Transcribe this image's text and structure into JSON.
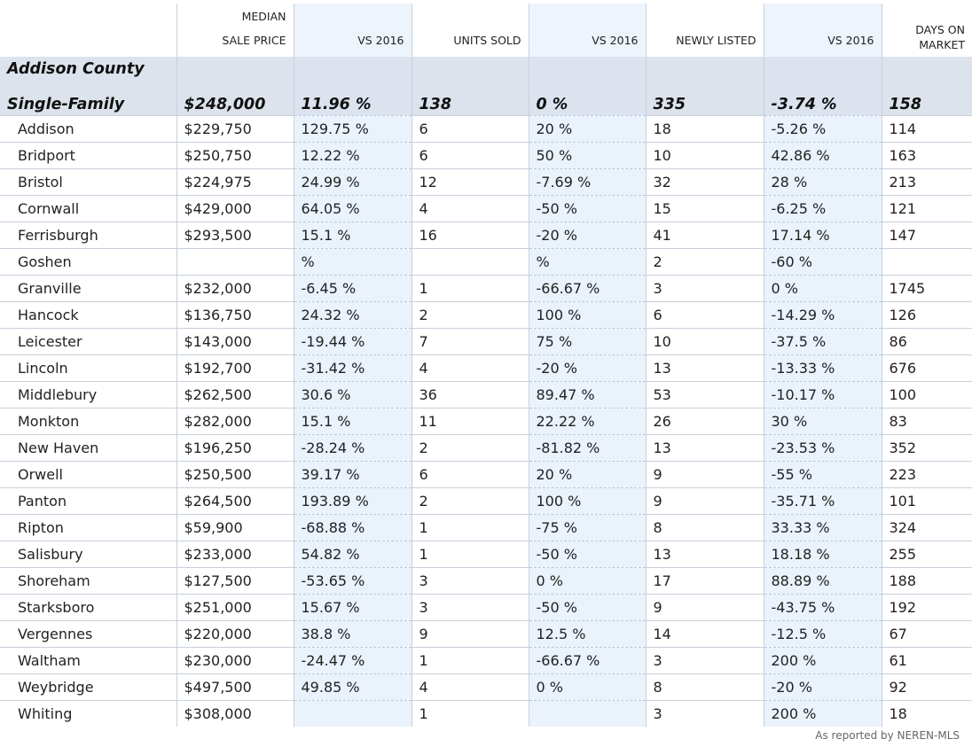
{
  "headers": {
    "median_line1": "MEDIAN",
    "median_line2": "SALE PRICE",
    "vs_price": "VS 2016",
    "units_sold": "UNITS SOLD",
    "vs_units": "VS 2016",
    "newly_listed": "NEWLY LISTED",
    "vs_listed": "VS 2016",
    "days_line1": "DAYS ON",
    "days_line2": "MARKET"
  },
  "county": {
    "name": "Addison County",
    "type": "Single-Family",
    "median": "$248,000",
    "vs_price": "11.96 %",
    "units": "138",
    "vs_units": "0 %",
    "listed": "335",
    "vs_listed": "-3.74 %",
    "days": "158"
  },
  "rows": [
    {
      "town": "Addison",
      "median": "$229,750",
      "vs_price": "129.75 %",
      "units": "6",
      "vs_units": "20 %",
      "listed": "18",
      "vs_listed": "-5.26 %",
      "days": "114"
    },
    {
      "town": "Bridport",
      "median": "$250,750",
      "vs_price": "12.22 %",
      "units": "6",
      "vs_units": "50 %",
      "listed": "10",
      "vs_listed": "42.86 %",
      "days": "163"
    },
    {
      "town": "Bristol",
      "median": "$224,975",
      "vs_price": "24.99 %",
      "units": "12",
      "vs_units": "-7.69 %",
      "listed": "32",
      "vs_listed": "28 %",
      "days": "213"
    },
    {
      "town": "Cornwall",
      "median": "$429,000",
      "vs_price": "64.05 %",
      "units": "4",
      "vs_units": "-50 %",
      "listed": "15",
      "vs_listed": "-6.25 %",
      "days": "121"
    },
    {
      "town": "Ferrisburgh",
      "median": "$293,500",
      "vs_price": "15.1 %",
      "units": "16",
      "vs_units": "-20 %",
      "listed": "41",
      "vs_listed": "17.14 %",
      "days": "147"
    },
    {
      "town": "Goshen",
      "median": "",
      "vs_price": "%",
      "units": "",
      "vs_units": "%",
      "listed": "2",
      "vs_listed": "-60 %",
      "days": ""
    },
    {
      "town": "Granville",
      "median": "$232,000",
      "vs_price": "-6.45 %",
      "units": "1",
      "vs_units": "-66.67 %",
      "listed": "3",
      "vs_listed": "0 %",
      "days": "1745"
    },
    {
      "town": "Hancock",
      "median": "$136,750",
      "vs_price": "24.32 %",
      "units": "2",
      "vs_units": "100 %",
      "listed": "6",
      "vs_listed": "-14.29 %",
      "days": "126"
    },
    {
      "town": "Leicester",
      "median": "$143,000",
      "vs_price": "-19.44 %",
      "units": "7",
      "vs_units": "75 %",
      "listed": "10",
      "vs_listed": "-37.5 %",
      "days": "86"
    },
    {
      "town": "Lincoln",
      "median": "$192,700",
      "vs_price": "-31.42 %",
      "units": "4",
      "vs_units": "-20 %",
      "listed": "13",
      "vs_listed": "-13.33 %",
      "days": "676"
    },
    {
      "town": "Middlebury",
      "median": "$262,500",
      "vs_price": "30.6 %",
      "units": "36",
      "vs_units": "89.47 %",
      "listed": "53",
      "vs_listed": "-10.17 %",
      "days": "100"
    },
    {
      "town": "Monkton",
      "median": "$282,000",
      "vs_price": "15.1 %",
      "units": "11",
      "vs_units": "22.22 %",
      "listed": "26",
      "vs_listed": "30 %",
      "days": "83"
    },
    {
      "town": "New Haven",
      "median": "$196,250",
      "vs_price": "-28.24 %",
      "units": "2",
      "vs_units": "-81.82 %",
      "listed": "13",
      "vs_listed": "-23.53 %",
      "days": "352"
    },
    {
      "town": "Orwell",
      "median": "$250,500",
      "vs_price": "39.17 %",
      "units": "6",
      "vs_units": "20 %",
      "listed": "9",
      "vs_listed": "-55 %",
      "days": "223"
    },
    {
      "town": "Panton",
      "median": "$264,500",
      "vs_price": "193.89 %",
      "units": "2",
      "vs_units": "100 %",
      "listed": "9",
      "vs_listed": "-35.71 %",
      "days": "101"
    },
    {
      "town": "Ripton",
      "median": "$59,900",
      "vs_price": "-68.88 %",
      "units": "1",
      "vs_units": "-75 %",
      "listed": "8",
      "vs_listed": "33.33 %",
      "days": "324"
    },
    {
      "town": "Salisbury",
      "median": "$233,000",
      "vs_price": "54.82 %",
      "units": "1",
      "vs_units": "-50 %",
      "listed": "13",
      "vs_listed": "18.18 %",
      "days": "255"
    },
    {
      "town": "Shoreham",
      "median": "$127,500",
      "vs_price": "-53.65 %",
      "units": "3",
      "vs_units": "0 %",
      "listed": "17",
      "vs_listed": "88.89 %",
      "days": "188"
    },
    {
      "town": "Starksboro",
      "median": "$251,000",
      "vs_price": "15.67 %",
      "units": "3",
      "vs_units": "-50 %",
      "listed": "9",
      "vs_listed": "-43.75 %",
      "days": "192"
    },
    {
      "town": "Vergennes",
      "median": "$220,000",
      "vs_price": "38.8 %",
      "units": "9",
      "vs_units": "12.5 %",
      "listed": "14",
      "vs_listed": "-12.5 %",
      "days": "67"
    },
    {
      "town": "Waltham",
      "median": "$230,000",
      "vs_price": "-24.47 %",
      "units": "1",
      "vs_units": "-66.67 %",
      "listed": "3",
      "vs_listed": "200 %",
      "days": "61"
    },
    {
      "town": "Weybridge",
      "median": "$497,500",
      "vs_price": "49.85 %",
      "units": "4",
      "vs_units": "0 %",
      "listed": "8",
      "vs_listed": "-20 %",
      "days": "92"
    },
    {
      "town": "Whiting",
      "median": "$308,000",
      "vs_price": "",
      "units": "1",
      "vs_units": "",
      "listed": "3",
      "vs_listed": "200 %",
      "days": "18"
    }
  ],
  "footer": "As reported by NEREN-MLS"
}
